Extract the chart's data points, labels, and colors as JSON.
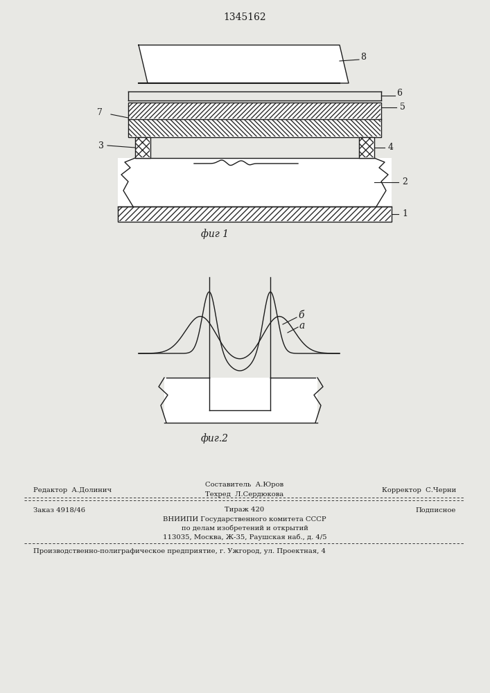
{
  "title": "1345162",
  "fig1_label": "фиг 1",
  "fig2_label": "фиг.2",
  "label_a": "а",
  "label_b": "б",
  "footer_line1_left": "Редактор  А.Долинич",
  "footer_sostavitel": "Составитель  А.Юров",
  "footer_tehred": "Техред  Л.Сердюкова",
  "footer_korrektor": "Корректор  С.Черни",
  "footer_zakaz": "Заказ 4918/46",
  "footer_tirazh": "Тираж 420",
  "footer_podpisnoe": "Подписное",
  "footer_vniipи": "ВНИИПИ Государственного комитета СССР",
  "footer_po_delam": "по делам изобретений и открытий",
  "footer_address": "113035, Москва, Ж-35, Раушская наб., д. 4/5",
  "footer_bottom": "Производственно-полиграфическое предприятие, г. Ужгород, ул. Проектная, 4",
  "bg_color": "#e8e8e4",
  "line_color": "#1a1a1a",
  "hatch_color": "#2a2a2a"
}
